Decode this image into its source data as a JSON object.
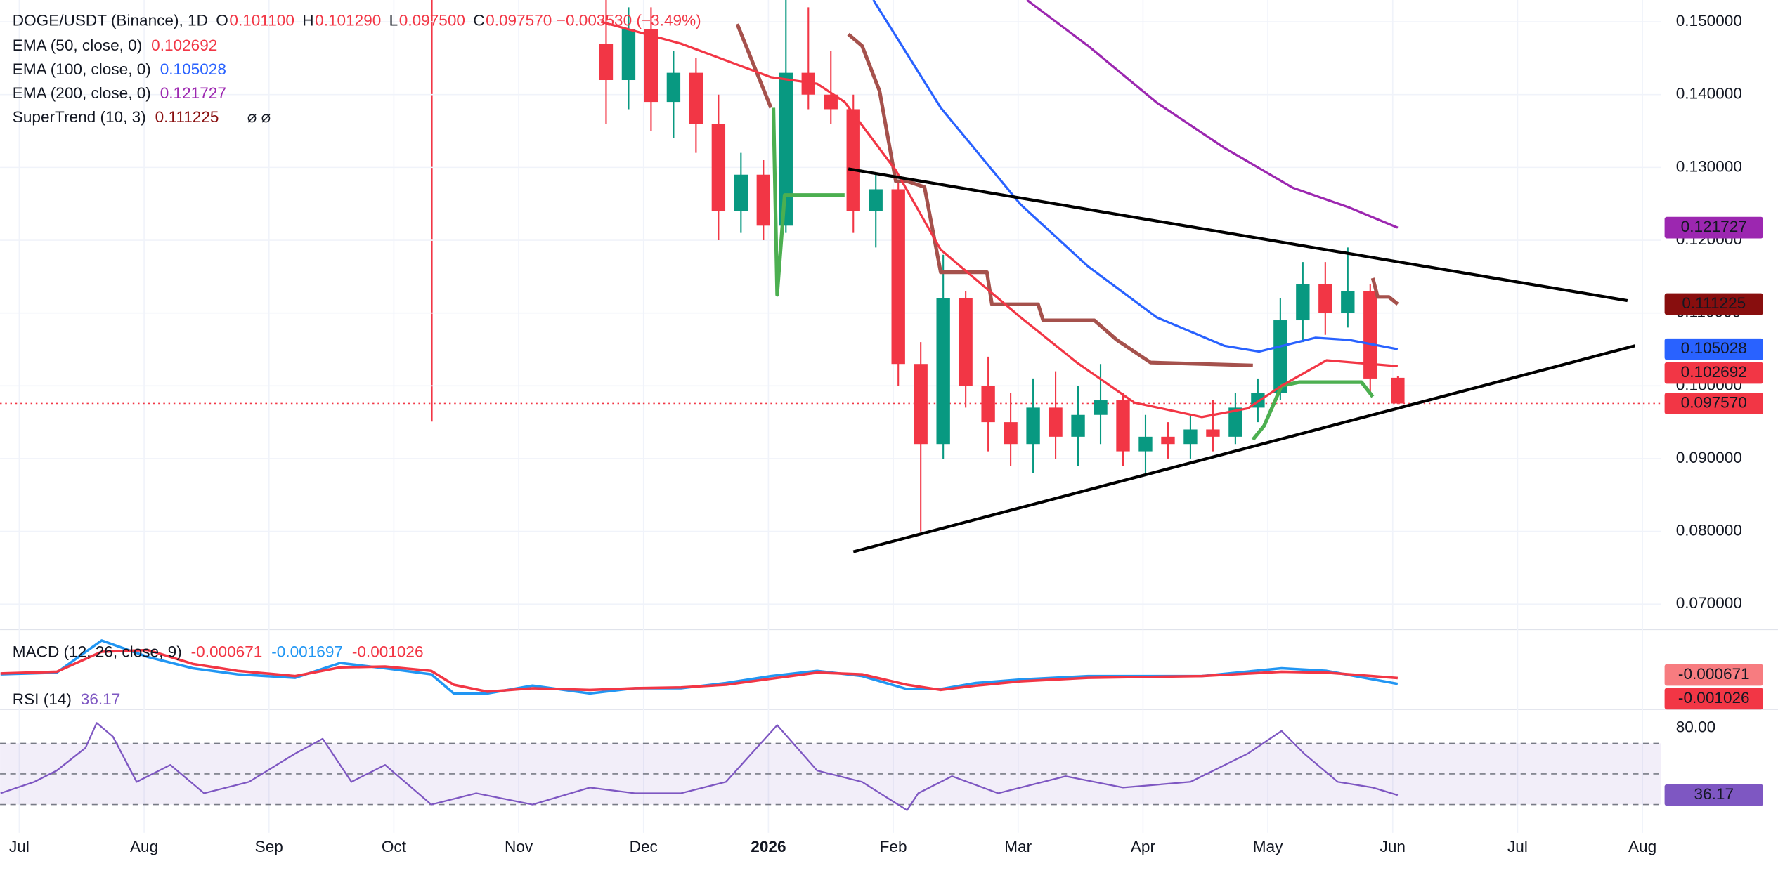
{
  "chart_data": [
    {
      "type": "candlestick",
      "title": "DOGE/USDT (Binance), 1D",
      "ohlc_legend": [
        {
          "name": "O",
          "value": "0.101100"
        },
        {
          "name": "H",
          "value": "0.101290"
        },
        {
          "name": "L",
          "value": "0.097500"
        },
        {
          "name": "C",
          "value": "0.097570"
        }
      ],
      "change_label": "−0.003530 (−3.49%)",
      "x": [
        4.7,
        4.88,
        5.06,
        5.24,
        5.42,
        5.6,
        5.78,
        5.96,
        6.14,
        6.32,
        6.5,
        6.68,
        6.86,
        7.04,
        7.22,
        7.4,
        7.58,
        7.76,
        7.94,
        8.12,
        8.3,
        8.48,
        8.66,
        8.84,
        9.02,
        9.2,
        9.38,
        9.56,
        9.74,
        9.92,
        10.1,
        10.28,
        10.46,
        10.64,
        10.82,
        11.04
      ],
      "open": [
        0.147,
        0.142,
        0.149,
        0.139,
        0.143,
        0.136,
        0.124,
        0.129,
        0.122,
        0.143,
        0.14,
        0.138,
        0.124,
        0.127,
        0.103,
        0.092,
        0.112,
        0.1,
        0.095,
        0.092,
        0.097,
        0.093,
        0.096,
        0.098,
        0.091,
        0.093,
        0.092,
        0.094,
        0.093,
        0.097,
        0.099,
        0.109,
        0.114,
        0.11,
        0.113,
        0.1011
      ],
      "high": [
        0.153,
        0.152,
        0.152,
        0.146,
        0.145,
        0.14,
        0.132,
        0.131,
        0.153,
        0.152,
        0.146,
        0.14,
        0.129,
        0.128,
        0.106,
        0.118,
        0.113,
        0.104,
        0.099,
        0.101,
        0.102,
        0.1,
        0.103,
        0.099,
        0.096,
        0.095,
        0.096,
        0.098,
        0.099,
        0.101,
        0.112,
        0.117,
        0.117,
        0.119,
        0.114,
        0.10129
      ],
      "low": [
        0.136,
        0.138,
        0.135,
        0.134,
        0.132,
        0.12,
        0.121,
        0.12,
        0.121,
        0.138,
        0.136,
        0.121,
        0.119,
        0.1,
        0.08,
        0.09,
        0.097,
        0.091,
        0.089,
        0.088,
        0.09,
        0.089,
        0.092,
        0.089,
        0.088,
        0.09,
        0.09,
        0.091,
        0.092,
        0.095,
        0.098,
        0.106,
        0.107,
        0.108,
        0.099,
        0.0975
      ],
      "close": [
        0.142,
        0.149,
        0.139,
        0.143,
        0.136,
        0.124,
        0.129,
        0.122,
        0.143,
        0.14,
        0.138,
        0.124,
        0.127,
        0.103,
        0.092,
        0.112,
        0.1,
        0.095,
        0.092,
        0.097,
        0.093,
        0.096,
        0.098,
        0.091,
        0.093,
        0.092,
        0.094,
        0.093,
        0.097,
        0.099,
        0.109,
        0.114,
        0.11,
        0.113,
        0.101,
        0.09757
      ],
      "up_color": "#089981",
      "down_color": "#f23645",
      "xlim": [
        -0.154,
        13.15
      ],
      "xticks": [
        {
          "value": 0,
          "label": "Jul"
        },
        {
          "value": 1,
          "label": "Aug"
        },
        {
          "value": 2,
          "label": "Sep"
        },
        {
          "value": 3,
          "label": "Oct"
        },
        {
          "value": 4,
          "label": "Nov"
        },
        {
          "value": 5,
          "label": "Dec"
        },
        {
          "value": 6,
          "label": "2026"
        },
        {
          "value": 7,
          "label": "Feb"
        },
        {
          "value": 8,
          "label": "Mar"
        },
        {
          "value": 9,
          "label": "Apr"
        },
        {
          "value": 10,
          "label": "May"
        },
        {
          "value": 11,
          "label": "Jun"
        },
        {
          "value": 12,
          "label": "Jul"
        },
        {
          "value": 13,
          "label": "Aug"
        }
      ],
      "ylim": [
        0.0666,
        0.153
      ],
      "yticks": [
        {
          "value": 0.15,
          "label": "0.150000"
        },
        {
          "value": 0.14,
          "label": "0.140000"
        },
        {
          "value": 0.13,
          "label": "0.130000"
        },
        {
          "value": 0.12,
          "label": "0.120000"
        },
        {
          "value": 0.11,
          "label": "0.110000"
        },
        {
          "value": 0.1,
          "label": "0.100000"
        },
        {
          "value": 0.09,
          "label": "0.090000"
        },
        {
          "value": 0.08,
          "label": "0.080000"
        },
        {
          "value": 0.07,
          "label": "0.070000"
        }
      ],
      "grid": true,
      "series": [
        {
          "name": "EMA (50, close, 0)",
          "legend_value": "0.102692",
          "color": "#f23645",
          "x": [
            4.66,
            5.3,
            6.02,
            6.39,
            6.61,
            7.02,
            7.38,
            8.02,
            8.47,
            8.93,
            9.47,
            9.84,
            10.11,
            10.47,
            11.04
          ],
          "values": [
            0.15,
            0.147,
            0.1424,
            0.1415,
            0.139,
            0.1296,
            0.1187,
            0.1094,
            0.1032,
            0.0977,
            0.0957,
            0.0969,
            0.1,
            0.1035,
            0.102692
          ]
        },
        {
          "name": "EMA (100, close, 0)",
          "legend_value": "0.105028",
          "color": "#2962ff",
          "x": [
            6.84,
            7.38,
            8.02,
            8.56,
            9.11,
            9.65,
            9.93,
            10.38,
            10.65,
            11.04
          ],
          "values": [
            0.153,
            0.1382,
            0.1249,
            0.1164,
            0.1094,
            0.1055,
            0.1047,
            0.1066,
            0.1063,
            0.105028
          ]
        },
        {
          "name": "EMA (200, close, 0)",
          "legend_value": "0.121727",
          "color": "#9c27b0",
          "x": [
            8.07,
            8.56,
            9.11,
            9.65,
            10.2,
            10.65,
            11.04
          ],
          "values": [
            0.153,
            0.1467,
            0.1389,
            0.1327,
            0.1272,
            0.1245,
            0.121727
          ]
        }
      ],
      "supertrend": {
        "name": "SuperTrend (10, 3)",
        "legend_value": "0.111225",
        "badge_color": "#880e0e",
        "down": {
          "color": "#a5514c",
          "x": [
            5.75,
            6.02,
            null,
            6.64,
            6.75,
            6.89,
            7.02,
            7.11,
            7.25,
            7.38,
            7.75,
            7.79,
            8.16,
            8.2,
            8.61,
            8.79,
            9.06,
            9.88,
            null,
            10.84,
            10.88,
            10.97,
            11.04
          ],
          "values": [
            0.1497,
            0.1382,
            null,
            0.1483,
            0.1467,
            0.1405,
            0.1281,
            0.1281,
            0.1273,
            0.1156,
            0.1156,
            0.1112,
            0.1112,
            0.109,
            0.109,
            0.1063,
            0.1032,
            0.1028,
            null,
            0.1148,
            0.1122,
            0.1122,
            0.111225
          ]
        },
        "up": {
          "color": "#4caf50",
          "x": [
            6.04,
            6.07,
            6.13,
            6.61,
            null,
            9.88,
            9.97,
            10.11,
            10.25,
            10.75,
            10.84
          ],
          "values": [
            0.1382,
            0.1125,
            0.1262,
            0.1262,
            null,
            0.0926,
            0.0945,
            0.1,
            0.1005,
            0.1005,
            0.0985
          ]
        }
      },
      "last_price": {
        "value": 0.09757,
        "label": "0.097570"
      },
      "trendlines": [
        {
          "x": [
            6.64,
            12.88
          ],
          "values": [
            0.1298,
            0.1117
          ]
        },
        {
          "x": [
            6.68,
            12.94
          ],
          "values": [
            0.0772,
            0.1055
          ]
        }
      ]
    },
    {
      "type": "line",
      "title": "MACD (12, 26, close, 9)",
      "legend_values": [
        {
          "label": "-0.000671",
          "color": "#f23645",
          "badge": "#f77c80"
        },
        {
          "label": "-0.001697",
          "color": "#2196f3"
        },
        {
          "label": "-0.001026",
          "color": "#f23645",
          "badge": "#f23645"
        }
      ],
      "ylim": [
        -0.0045,
        0.0045
      ],
      "series": [
        {
          "color": "#2196f3",
          "x": [
            -0.15,
            0.3,
            0.66,
            1.03,
            1.39,
            1.75,
            2.21,
            2.57,
            2.93,
            3.3,
            3.48,
            3.75,
            4.11,
            4.57,
            4.93,
            5.3,
            5.66,
            6.02,
            6.39,
            6.75,
            7.11,
            7.38,
            7.66,
            8.02,
            8.56,
            9.47,
            10.11,
            10.47,
            11.04
          ],
          "values": [
            -0.0006,
            -0.0004,
            0.0033,
            0.0014,
            0.0001,
            -0.0006,
            -0.001,
            0.0007,
            0.0001,
            -0.0006,
            -0.0028,
            -0.0028,
            -0.0019,
            -0.0028,
            -0.0022,
            -0.0022,
            -0.0016,
            -0.0008,
            -0.0002,
            -0.0008,
            -0.0023,
            -0.0023,
            -0.0016,
            -0.0012,
            -0.0008,
            -0.0008,
            0.0001,
            -0.0002,
            -0.001697
          ]
        },
        {
          "color": "#f23645",
          "x": [
            -0.15,
            0.3,
            0.66,
            1.03,
            1.39,
            1.75,
            2.21,
            2.57,
            2.93,
            3.3,
            3.48,
            3.75,
            4.11,
            4.57,
            4.93,
            5.3,
            5.66,
            6.02,
            6.39,
            6.75,
            7.11,
            7.38,
            7.66,
            8.02,
            8.56,
            9.47,
            10.11,
            10.47,
            11.04
          ],
          "values": [
            -0.0005,
            -0.0003,
            0.002,
            0.0022,
            0.0006,
            -0.0002,
            -0.0008,
            0.0002,
            0.0003,
            -0.0002,
            -0.0018,
            -0.0026,
            -0.0022,
            -0.0024,
            -0.0022,
            -0.0021,
            -0.0018,
            -0.0011,
            -0.0004,
            -0.0006,
            -0.0018,
            -0.0024,
            -0.0019,
            -0.0014,
            -0.001,
            -0.0008,
            -0.0003,
            -0.0004,
            -0.001026
          ]
        }
      ]
    },
    {
      "type": "line",
      "title": "RSI (14)",
      "legend_value": "36.17",
      "ylim": [
        11.5,
        92.2
      ],
      "yticks": [
        {
          "value": 80,
          "label": "80.00"
        }
      ],
      "levels": [
        70,
        50,
        30
      ],
      "color": "#7e57c2",
      "series": [
        {
          "color": "#7e57c2",
          "x": [
            -0.15,
            0.12,
            0.3,
            0.53,
            0.62,
            0.75,
            0.94,
            1.21,
            1.48,
            1.84,
            2.21,
            2.43,
            2.66,
            2.93,
            3.3,
            3.66,
            4.11,
            4.57,
            4.93,
            5.3,
            5.66,
            6.07,
            6.39,
            6.75,
            7.11,
            7.2,
            7.47,
            7.84,
            8.38,
            8.84,
            9.38,
            9.84,
            10.11,
            10.29,
            10.56,
            10.84,
            11.04
          ],
          "values": [
            37.4,
            44.8,
            52.2,
            67.0,
            83.3,
            74.4,
            44.8,
            55.9,
            37.4,
            44.8,
            63.3,
            73.0,
            44.8,
            55.9,
            30.0,
            37.4,
            30.0,
            41.1,
            37.4,
            37.4,
            44.8,
            81.9,
            52.2,
            44.8,
            26.3,
            37.4,
            48.5,
            37.4,
            48.5,
            41.1,
            44.8,
            63.3,
            78.1,
            63.3,
            44.8,
            41.1,
            36.17
          ]
        }
      ]
    }
  ]
}
